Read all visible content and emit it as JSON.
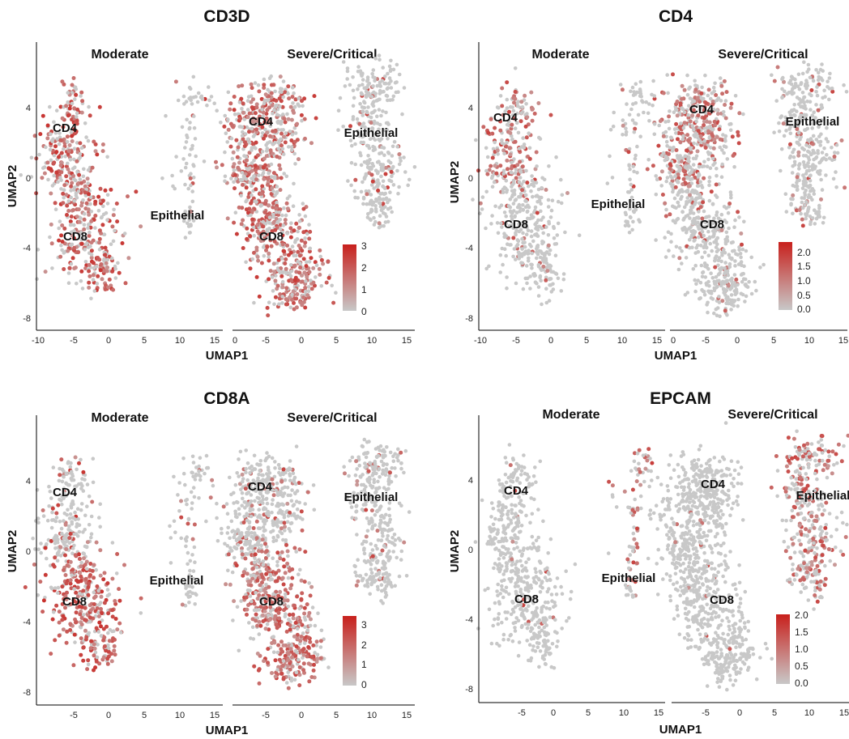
{
  "colors": {
    "low": "#c8c8c8",
    "high": "#c8201c",
    "axis": "#000000"
  },
  "chart_data": [
    {
      "type": "scatter",
      "title": "CD3D",
      "xlabel": "UMAP1",
      "ylabel": "UMAP2",
      "facets": [
        "Moderate",
        "Severe/Critical"
      ],
      "yticks": [
        "4",
        "0",
        "-4",
        "-8"
      ],
      "xticks_left": [
        "-10",
        "-5",
        "0",
        "5",
        "10",
        "15"
      ],
      "xticks_right": [
        "0",
        "-5",
        "0",
        "5",
        "10",
        "15"
      ],
      "cluster_labels": [
        "CD4",
        "CD8",
        "Epithelial"
      ],
      "legend": {
        "ticks": [
          "3",
          "2",
          "1",
          "0"
        ],
        "max": 3
      },
      "expression": {
        "CD4": 0.6,
        "CD8": 0.6,
        "Epithelial": 0.1,
        "mode_moderate": 0.7,
        "mode_severe": 0.6
      }
    },
    {
      "type": "scatter",
      "title": "CD4",
      "xlabel": "UMAP1",
      "ylabel": "UMAP2",
      "facets": [
        "Moderate",
        "Severe/Critical"
      ],
      "yticks": [
        "4",
        "0",
        "-4",
        "-8"
      ],
      "xticks_left": [
        "-10",
        "-5",
        "0",
        "5",
        "10",
        "15"
      ],
      "xticks_right": [
        "0",
        "-5",
        "0",
        "5",
        "10",
        "15"
      ],
      "cluster_labels": [
        "CD4",
        "CD8",
        "Epithelial"
      ],
      "legend": {
        "ticks": [
          "2.0",
          "1.5",
          "1.0",
          "0.5",
          "0.0"
        ],
        "max": 2
      },
      "expression": {
        "CD4": 0.45,
        "CD8": 0.08,
        "Epithelial": 0.1,
        "mode_moderate": 0.5,
        "mode_severe": 0.45
      }
    },
    {
      "type": "scatter",
      "title": "CD8A",
      "xlabel": "UMAP1",
      "ylabel": "UMAP2",
      "facets": [
        "Moderate",
        "Severe/Critical"
      ],
      "yticks": [
        "4",
        "0",
        "-4",
        "-8"
      ],
      "xticks_left": [
        "-5",
        "0",
        "5",
        "10",
        "15"
      ],
      "xticks_right": [
        "-5",
        "0",
        "5",
        "10",
        "15"
      ],
      "cluster_labels": [
        "CD4",
        "CD8",
        "Epithelial"
      ],
      "legend": {
        "ticks": [
          "3",
          "2",
          "1",
          "0"
        ],
        "max": 3
      },
      "expression": {
        "CD4": 0.12,
        "CD8": 0.7,
        "Epithelial": 0.08,
        "mode_moderate": 0.75,
        "mode_severe": 0.5
      }
    },
    {
      "type": "scatter",
      "title": "EPCAM",
      "xlabel": "UMAP1",
      "ylabel": "UMAP2",
      "facets": [
        "Moderate",
        "Severe/Critical"
      ],
      "yticks": [
        "4",
        "0",
        "-4",
        "-8"
      ],
      "xticks_left": [
        "-5",
        "0",
        "5",
        "10",
        "15"
      ],
      "xticks_right": [
        "-5",
        "0",
        "5",
        "10",
        "15"
      ],
      "cluster_labels": [
        "CD4",
        "CD8",
        "Epithelial"
      ],
      "legend": {
        "ticks": [
          "2.0",
          "1.5",
          "1.0",
          "0.5",
          "0.0"
        ],
        "max": 2
      },
      "expression": {
        "CD4": 0.01,
        "CD8": 0.01,
        "Epithelial": 0.45,
        "mode_moderate": 0.6,
        "mode_severe": 0.5
      }
    }
  ]
}
